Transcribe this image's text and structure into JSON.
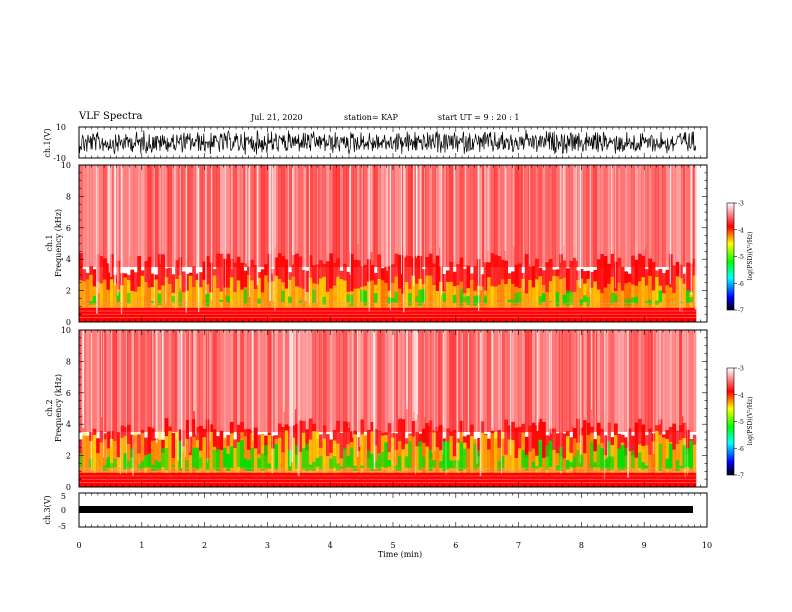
{
  "header": {
    "title": "VLF Spectra",
    "date": "Jul. 21, 2020",
    "station": "station= KAP",
    "start_ut": "start UT =  9 : 20 : 1"
  },
  "colors": {
    "spectrum_red": "#ff0000",
    "spectrum_yellow": "#ffe000",
    "spectrum_green": "#00e000",
    "waveform": "#000000"
  },
  "chart_data": [
    {
      "type": "line",
      "panel": "ch1-waveform",
      "ylabel": "ch.1(V)",
      "ylim": [
        -10,
        10
      ],
      "yticks": [
        "10",
        "-10"
      ],
      "xlim": [
        0,
        10
      ]
    },
    {
      "type": "heatmap",
      "panel": "ch1-spectrogram",
      "ylabel_lines": [
        "ch.1",
        "Frequency (kHz)"
      ],
      "ylim": [
        0,
        10
      ],
      "yticks": [
        "0",
        "2",
        "4",
        "6",
        "8",
        "10"
      ],
      "xlim": [
        0,
        9.83
      ],
      "colorbar": {
        "label": "log(PSD)(V²/Hz)",
        "range": [
          -7,
          -3
        ],
        "ticks": [
          "-3",
          "-4",
          "-5",
          "-6",
          "-7"
        ]
      }
    },
    {
      "type": "heatmap",
      "panel": "ch2-spectrogram",
      "ylabel_lines": [
        "ch.2",
        "Frequency (kHz)"
      ],
      "ylim": [
        0,
        10
      ],
      "yticks": [
        "0",
        "2",
        "4",
        "6",
        "8",
        "10"
      ],
      "xlim": [
        0,
        9.83
      ],
      "colorbar": {
        "label": "log(PSD)(V²/Hz)",
        "range": [
          -7,
          -3
        ],
        "ticks": [
          "-3",
          "-4",
          "-5",
          "-6",
          "-7"
        ]
      }
    },
    {
      "type": "line",
      "panel": "ch3-waveform",
      "ylabel": "ch.3(V)",
      "ylim": [
        -5,
        5
      ],
      "yticks": [
        "5",
        "0",
        "-5"
      ],
      "xlim": [
        0,
        10
      ]
    }
  ],
  "x_axis": {
    "label": "Time (min)",
    "ticks": [
      "0",
      "1",
      "2",
      "3",
      "4",
      "5",
      "6",
      "7",
      "8",
      "9",
      "10"
    ]
  }
}
